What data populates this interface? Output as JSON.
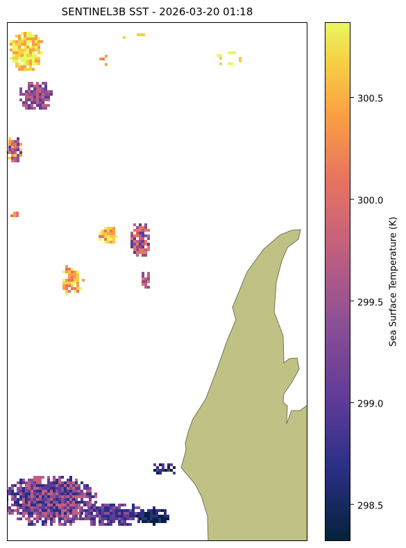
{
  "title": "SENTINEL3B SST - 2026-03-20 01:18",
  "colorbar": {
    "label": "Sea Surface Temperature (K)",
    "range": [
      298.32,
      300.87
    ],
    "ticks": [
      "298.5",
      "299.0",
      "299.5",
      "300.0",
      "300.5"
    ],
    "tick_values": [
      298.5,
      299.0,
      299.5,
      300.0,
      300.5
    ],
    "colormap": "thermal",
    "colors": [
      "#04223a",
      "#2a2f86",
      "#5e3b97",
      "#8b4f95",
      "#c05f80",
      "#e8745f",
      "#fa9f43",
      "#f8cd44",
      "#e9f760"
    ]
  },
  "colors": {
    "land": "#c0c285",
    "coastline": "#6d7355",
    "frame": "#000000"
  }
}
